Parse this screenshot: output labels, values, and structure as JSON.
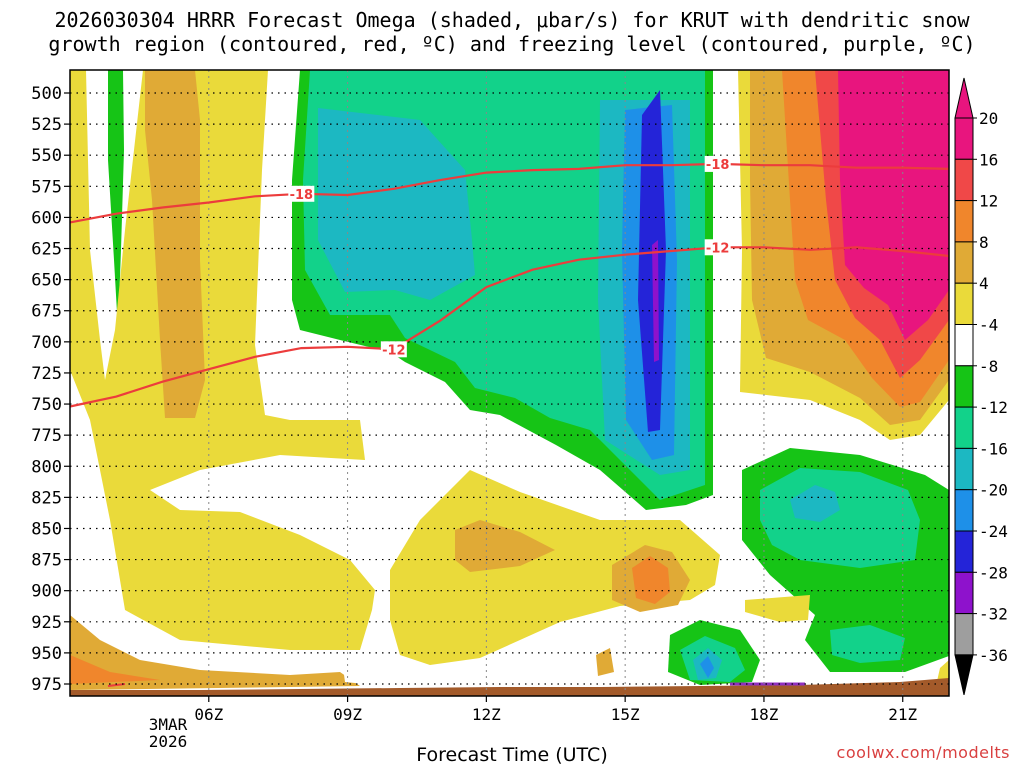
{
  "header": {
    "title_line1": "2026030304 HRRR Forecast Omega (shaded, μbar/s) for KRUT with dendritic snow",
    "title_line2": "growth region (contoured, red, ºC) and freezing level (contoured, purple, ºC)"
  },
  "footer": {
    "xlabel": "Forecast Time (UTC)",
    "credit": "coolwx.com/modelts",
    "date_month": "3MAR",
    "date_year": "2026"
  },
  "chart_data": {
    "type": "heatmap",
    "title": "2026030304 HRRR Forecast Omega (shaded, μbar/s) for KRUT with dendritic snow growth region (contoured, red, ºC) and freezing level (contoured, purple, ºC)",
    "xlabel": "Forecast Time (UTC)",
    "ylabel": "",
    "x_range_hours": [
      3,
      22
    ],
    "y_range_hPa": [
      475,
      990
    ],
    "x_ticks": [
      {
        "hour": 6,
        "label": "06Z"
      },
      {
        "hour": 9,
        "label": "09Z"
      },
      {
        "hour": 12,
        "label": "12Z"
      },
      {
        "hour": 15,
        "label": "15Z"
      },
      {
        "hour": 18,
        "label": "18Z"
      },
      {
        "hour": 21,
        "label": "21Z"
      }
    ],
    "y_ticks": [
      500,
      525,
      550,
      575,
      600,
      625,
      650,
      675,
      700,
      725,
      750,
      775,
      800,
      825,
      850,
      875,
      900,
      925,
      950,
      975
    ],
    "grid": true,
    "colorbar": {
      "labels": [
        "20",
        "16",
        "12",
        "8",
        "4",
        "-4",
        "-8",
        "-12",
        "-16",
        "-20",
        "-24",
        "-28",
        "-32",
        "-36"
      ],
      "colors": [
        "#e8157e",
        "#f04848",
        "#f0862c",
        "#e0aa36",
        "#eada3a",
        "#ffffff",
        "#16c416",
        "#12d28a",
        "#1cb8c2",
        "#1e90e8",
        "#2424d8",
        "#8e12cc",
        "#9e9e9e"
      ]
    },
    "contours": [
      {
        "label": "-18",
        "color": "#ec3c3c",
        "points": [
          [
            3.0,
            604
          ],
          [
            4.0,
            597
          ],
          [
            5.0,
            592
          ],
          [
            6.0,
            588
          ],
          [
            7.0,
            583
          ],
          [
            8.0,
            581
          ],
          [
            9.0,
            582
          ],
          [
            10.0,
            577
          ],
          [
            11.0,
            570
          ],
          [
            12.0,
            564
          ],
          [
            13.0,
            562
          ],
          [
            14.0,
            561
          ],
          [
            15.0,
            558
          ],
          [
            16.0,
            558
          ],
          [
            17.0,
            557
          ],
          [
            18.0,
            558
          ],
          [
            19.0,
            558
          ],
          [
            20.0,
            560
          ],
          [
            21.0,
            560
          ],
          [
            22.0,
            561
          ]
        ]
      },
      {
        "label": "-12",
        "color": "#ec3c3c",
        "points": [
          [
            3.0,
            752
          ],
          [
            4.0,
            744
          ],
          [
            5.0,
            732
          ],
          [
            6.0,
            722
          ],
          [
            7.0,
            712
          ],
          [
            8.0,
            705
          ],
          [
            9.0,
            704
          ],
          [
            10.0,
            706
          ],
          [
            11.0,
            683
          ],
          [
            12.0,
            656
          ],
          [
            13.0,
            642
          ],
          [
            14.0,
            634
          ],
          [
            15.0,
            630
          ],
          [
            16.0,
            627
          ],
          [
            17.0,
            624
          ],
          [
            18.0,
            624
          ],
          [
            19.0,
            626
          ],
          [
            20.0,
            624
          ],
          [
            21.0,
            627
          ],
          [
            22.0,
            631
          ]
        ]
      }
    ],
    "freezing_level": {
      "color": "#9030c0",
      "note": ""
    }
  }
}
